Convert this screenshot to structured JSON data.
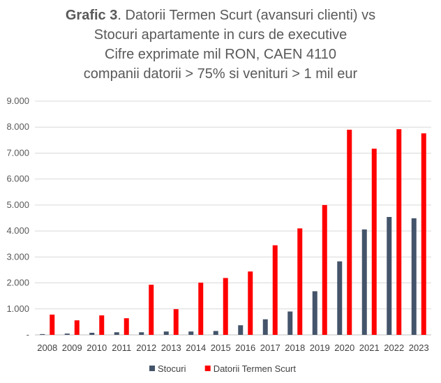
{
  "chart_data": {
    "type": "bar",
    "title_bold": "Grafic 3",
    "title_rest": ". Datorii Termen Scurt (avansuri clienti) vs",
    "subtitle_lines": [
      "Stocuri apartamente in curs de executive",
      "Cifre exprimate mil RON, CAEN 4110",
      "companii datorii > 75% si venituri > 1 mil eur"
    ],
    "xlabel": "",
    "ylabel": "",
    "categories": [
      "2008",
      "2009",
      "2010",
      "2011",
      "2012",
      "2013",
      "2014",
      "2015",
      "2016",
      "2017",
      "2018",
      "2019",
      "2020",
      "2021",
      "2022",
      "2023"
    ],
    "series": [
      {
        "name": "Stocuri",
        "color": "#44546a",
        "values": [
          30,
          50,
          80,
          100,
          100,
          130,
          130,
          150,
          370,
          600,
          900,
          1680,
          2830,
          4060,
          4540,
          4490
        ]
      },
      {
        "name": "Datorii Termen Scurt",
        "color": "#ff0000",
        "values": [
          780,
          560,
          750,
          640,
          1930,
          990,
          2010,
          2190,
          2440,
          3450,
          4100,
          5000,
          7900,
          7170,
          7920,
          7760
        ]
      }
    ],
    "ylim": [
      0,
      9000
    ],
    "yticks": [
      0,
      1000,
      2000,
      3000,
      4000,
      5000,
      6000,
      7000,
      8000,
      9000
    ],
    "ytick_labels": [
      "-",
      "1.000",
      "2.000",
      "3.000",
      "4.000",
      "5.000",
      "6.000",
      "7.000",
      "8.000",
      "9.000"
    ],
    "grid": true,
    "legend_position": "bottom"
  }
}
